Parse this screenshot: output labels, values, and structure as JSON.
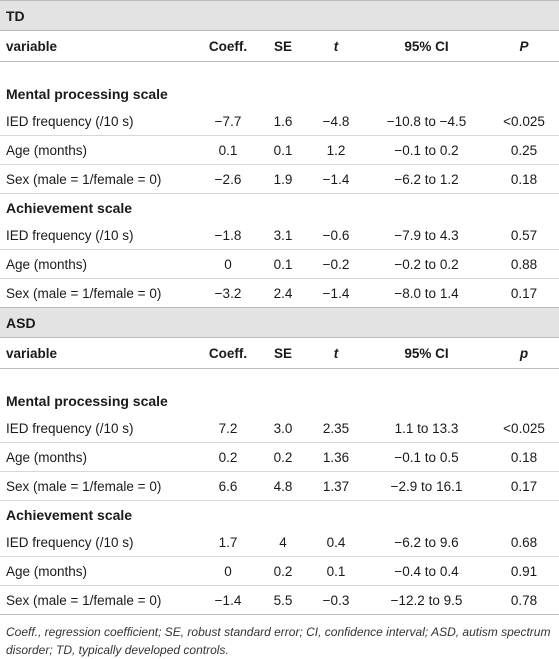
{
  "sections": [
    {
      "label": "TD",
      "header": [
        "variable",
        "Coeff.",
        "SE",
        "t",
        "95% CI",
        "P"
      ],
      "groups": [
        {
          "title": "Mental processing scale",
          "rows": [
            [
              "IED frequency (/10 s)",
              "−7.7",
              "1.6",
              "−4.8",
              "−10.8 to −4.5",
              "<0.025"
            ],
            [
              "Age (months)",
              "0.1",
              "0.1",
              "1.2",
              "−0.1 to 0.2",
              "0.25"
            ],
            [
              "Sex (male = 1/female = 0)",
              "−2.6",
              "1.9",
              "−1.4",
              "−6.2 to 1.2",
              "0.18"
            ]
          ]
        },
        {
          "title": "Achievement scale",
          "rows": [
            [
              "IED frequency (/10 s)",
              "−1.8",
              "3.1",
              "−0.6",
              "−7.9 to 4.3",
              "0.57"
            ],
            [
              "Age (months)",
              "0",
              "0.1",
              "−0.2",
              "−0.2 to 0.2",
              "0.88"
            ],
            [
              "Sex (male = 1/female = 0)",
              "−3.2",
              "2.4",
              "−1.4",
              "−8.0 to 1.4",
              "0.17"
            ]
          ]
        }
      ]
    },
    {
      "label": "ASD",
      "header": [
        "variable",
        "Coeff.",
        "SE",
        "t",
        "95% CI",
        "p"
      ],
      "groups": [
        {
          "title": "Mental processing scale",
          "rows": [
            [
              "IED frequency (/10 s)",
              "7.2",
              "3.0",
              "2.35",
              "1.1 to 13.3",
              "<0.025"
            ],
            [
              "Age (months)",
              "0.2",
              "0.2",
              "1.36",
              "−0.1 to 0.5",
              "0.18"
            ],
            [
              "Sex (male = 1/female = 0)",
              "6.6",
              "4.8",
              "1.37",
              "−2.9 to 16.1",
              "0.17"
            ]
          ]
        },
        {
          "title": "Achievement scale",
          "rows": [
            [
              "IED frequency (/10 s)",
              "1.7",
              "4",
              "0.4",
              "−6.2 to 9.6",
              "0.68"
            ],
            [
              "Age (months)",
              "0",
              "0.2",
              "0.1",
              "−0.4 to 0.4",
              "0.91"
            ],
            [
              "Sex (male = 1/female = 0)",
              "−1.4",
              "5.5",
              "−0.3",
              "−12.2 to 9.5",
              "0.78"
            ]
          ]
        }
      ]
    }
  ],
  "footnote": "Coeff., regression coefficient; SE, robust standard error; CI, confidence interval; ASD, autism spectrum disorder; TD, typically developed controls."
}
